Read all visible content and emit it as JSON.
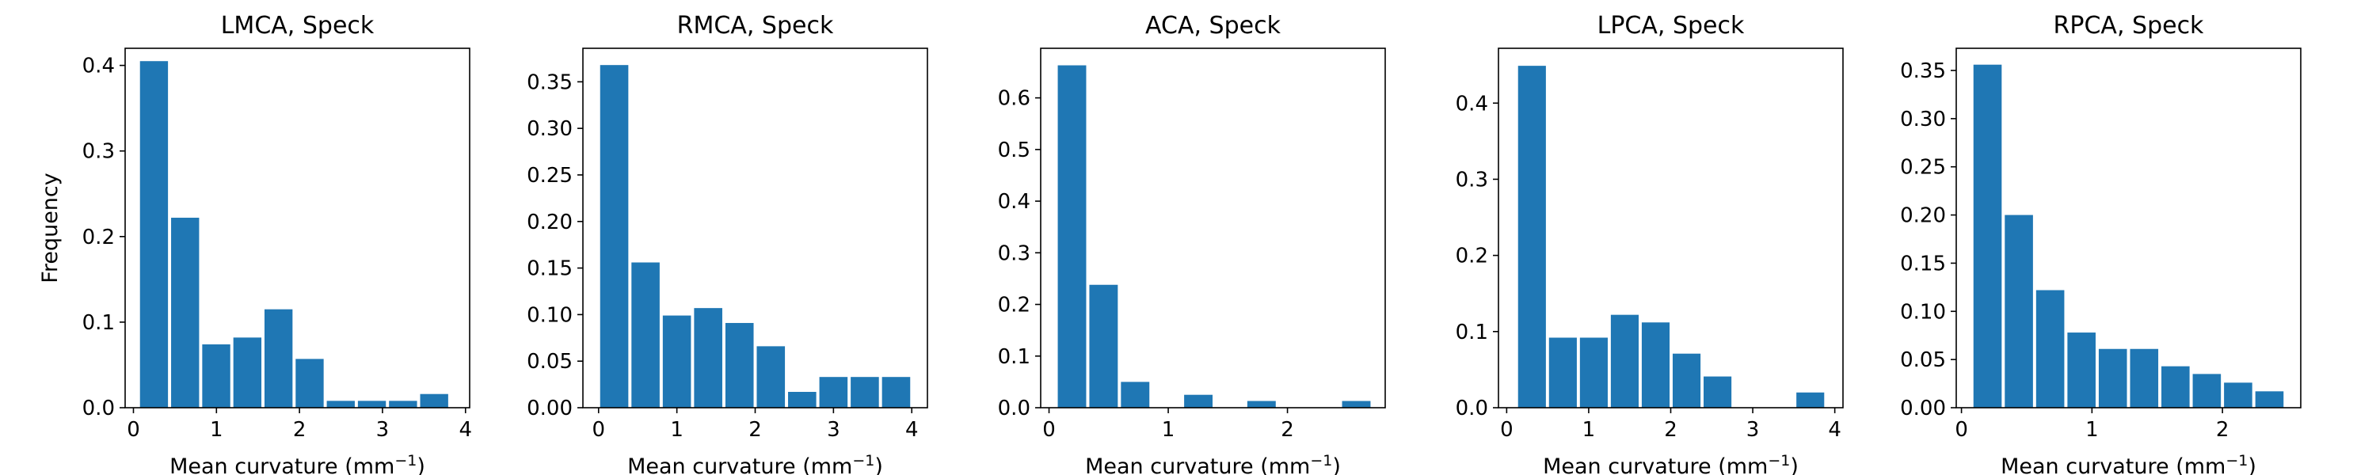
{
  "figure": {
    "ylabel": "Frequency"
  },
  "chart_data": [
    {
      "type": "bar",
      "title": "LMCA, Speck",
      "xlabel_prefix": "Mean curvature (mm",
      "xlabel_sup": "−1",
      "xlabel_suffix": ")",
      "xlim": [
        -0.1,
        4.05
      ],
      "ylim": [
        0,
        0.42
      ],
      "xticks": [
        0,
        1,
        2,
        3,
        4
      ],
      "xtick_labels": [
        "0",
        "1",
        "2",
        "3",
        "4"
      ],
      "yticks": [
        0,
        0.1,
        0.2,
        0.3,
        0.4
      ],
      "ytick_labels": [
        "0.0",
        "0.1",
        "0.2",
        "0.3",
        "0.4"
      ],
      "bin_edges": [
        0.06,
        0.435,
        0.81,
        1.185,
        1.56,
        1.935,
        2.31,
        2.685,
        3.06,
        3.435,
        3.81
      ],
      "values": [
        0.405,
        0.222,
        0.074,
        0.082,
        0.115,
        0.057,
        0.008,
        0.008,
        0.008,
        0.016
      ],
      "color": "#1f77b4"
    },
    {
      "type": "bar",
      "title": "RMCA, Speck",
      "xlabel_prefix": "Mean curvature (mm",
      "xlabel_sup": "−1",
      "xlabel_suffix": ")",
      "xlim": [
        -0.2,
        4.2
      ],
      "ylim": [
        0,
        0.386
      ],
      "xticks": [
        0,
        1,
        2,
        3,
        4
      ],
      "xtick_labels": [
        "0",
        "1",
        "2",
        "3",
        "4"
      ],
      "yticks": [
        0,
        0.05,
        0.1,
        0.15,
        0.2,
        0.25,
        0.3,
        0.35
      ],
      "ytick_labels": [
        "0.00",
        "0.05",
        "0.10",
        "0.15",
        "0.20",
        "0.25",
        "0.30",
        "0.35"
      ],
      "bin_edges": [
        0.0,
        0.4,
        0.8,
        1.2,
        1.6,
        2.0,
        2.4,
        2.8,
        3.2,
        3.6,
        4.0
      ],
      "values": [
        0.368,
        0.156,
        0.099,
        0.107,
        0.091,
        0.066,
        0.017,
        0.033,
        0.033,
        0.033
      ],
      "color": "#1f77b4"
    },
    {
      "type": "bar",
      "title": "ACA, Speck",
      "xlabel_prefix": "Mean curvature (mm",
      "xlabel_sup": "−1",
      "xlabel_suffix": ")",
      "xlim": [
        -0.07,
        2.82
      ],
      "ylim": [
        0,
        0.696
      ],
      "xticks": [
        0,
        1,
        2
      ],
      "xtick_labels": [
        "0",
        "1",
        "2"
      ],
      "yticks": [
        0,
        0.1,
        0.2,
        0.3,
        0.4,
        0.5,
        0.6
      ],
      "ytick_labels": [
        "0.0",
        "0.1",
        "0.2",
        "0.3",
        "0.4",
        "0.5",
        "0.6"
      ],
      "bin_edges": [
        0.06,
        0.325,
        0.59,
        0.855,
        1.12,
        1.385,
        1.65,
        1.915,
        2.18,
        2.445,
        2.71
      ],
      "values": [
        0.663,
        0.238,
        0.05,
        0.0,
        0.025,
        0.0,
        0.013,
        0.0,
        0.0,
        0.013
      ],
      "color": "#1f77b4"
    },
    {
      "type": "bar",
      "title": "LPCA, Speck",
      "xlabel_prefix": "Mean curvature (mm",
      "xlabel_sup": "−1",
      "xlabel_suffix": ")",
      "xlim": [
        -0.1,
        4.1
      ],
      "ylim": [
        0,
        0.472
      ],
      "xticks": [
        0,
        1,
        2,
        3,
        4
      ],
      "xtick_labels": [
        "0",
        "1",
        "2",
        "3",
        "4"
      ],
      "yticks": [
        0,
        0.1,
        0.2,
        0.3,
        0.4
      ],
      "ytick_labels": [
        "0.0",
        "0.1",
        "0.2",
        "0.3",
        "0.4"
      ],
      "bin_edges": [
        0.12,
        0.497,
        0.874,
        1.251,
        1.628,
        2.005,
        2.382,
        2.759,
        3.136,
        3.513,
        3.89
      ],
      "values": [
        0.449,
        0.092,
        0.092,
        0.122,
        0.112,
        0.071,
        0.041,
        0.0,
        0.0,
        0.02
      ],
      "color": "#1f77b4"
    },
    {
      "type": "bar",
      "title": "RPCA, Speck",
      "xlabel_prefix": "Mean curvature (mm",
      "xlabel_sup": "−1",
      "xlabel_suffix": ")",
      "xlim": [
        -0.04,
        2.6
      ],
      "ylim": [
        0,
        0.373
      ],
      "xticks": [
        0,
        1,
        2
      ],
      "xtick_labels": [
        "0",
        "1",
        "2"
      ],
      "yticks": [
        0,
        0.05,
        0.1,
        0.15,
        0.2,
        0.25,
        0.3,
        0.35
      ],
      "ytick_labels": [
        "0.00",
        "0.05",
        "0.10",
        "0.15",
        "0.20",
        "0.25",
        "0.30",
        "0.35"
      ],
      "bin_edges": [
        0.08,
        0.32,
        0.56,
        0.8,
        1.04,
        1.28,
        1.52,
        1.76,
        2.0,
        2.24,
        2.48
      ],
      "values": [
        0.356,
        0.2,
        0.122,
        0.078,
        0.061,
        0.061,
        0.043,
        0.035,
        0.026,
        0.017
      ],
      "color": "#1f77b4"
    }
  ]
}
